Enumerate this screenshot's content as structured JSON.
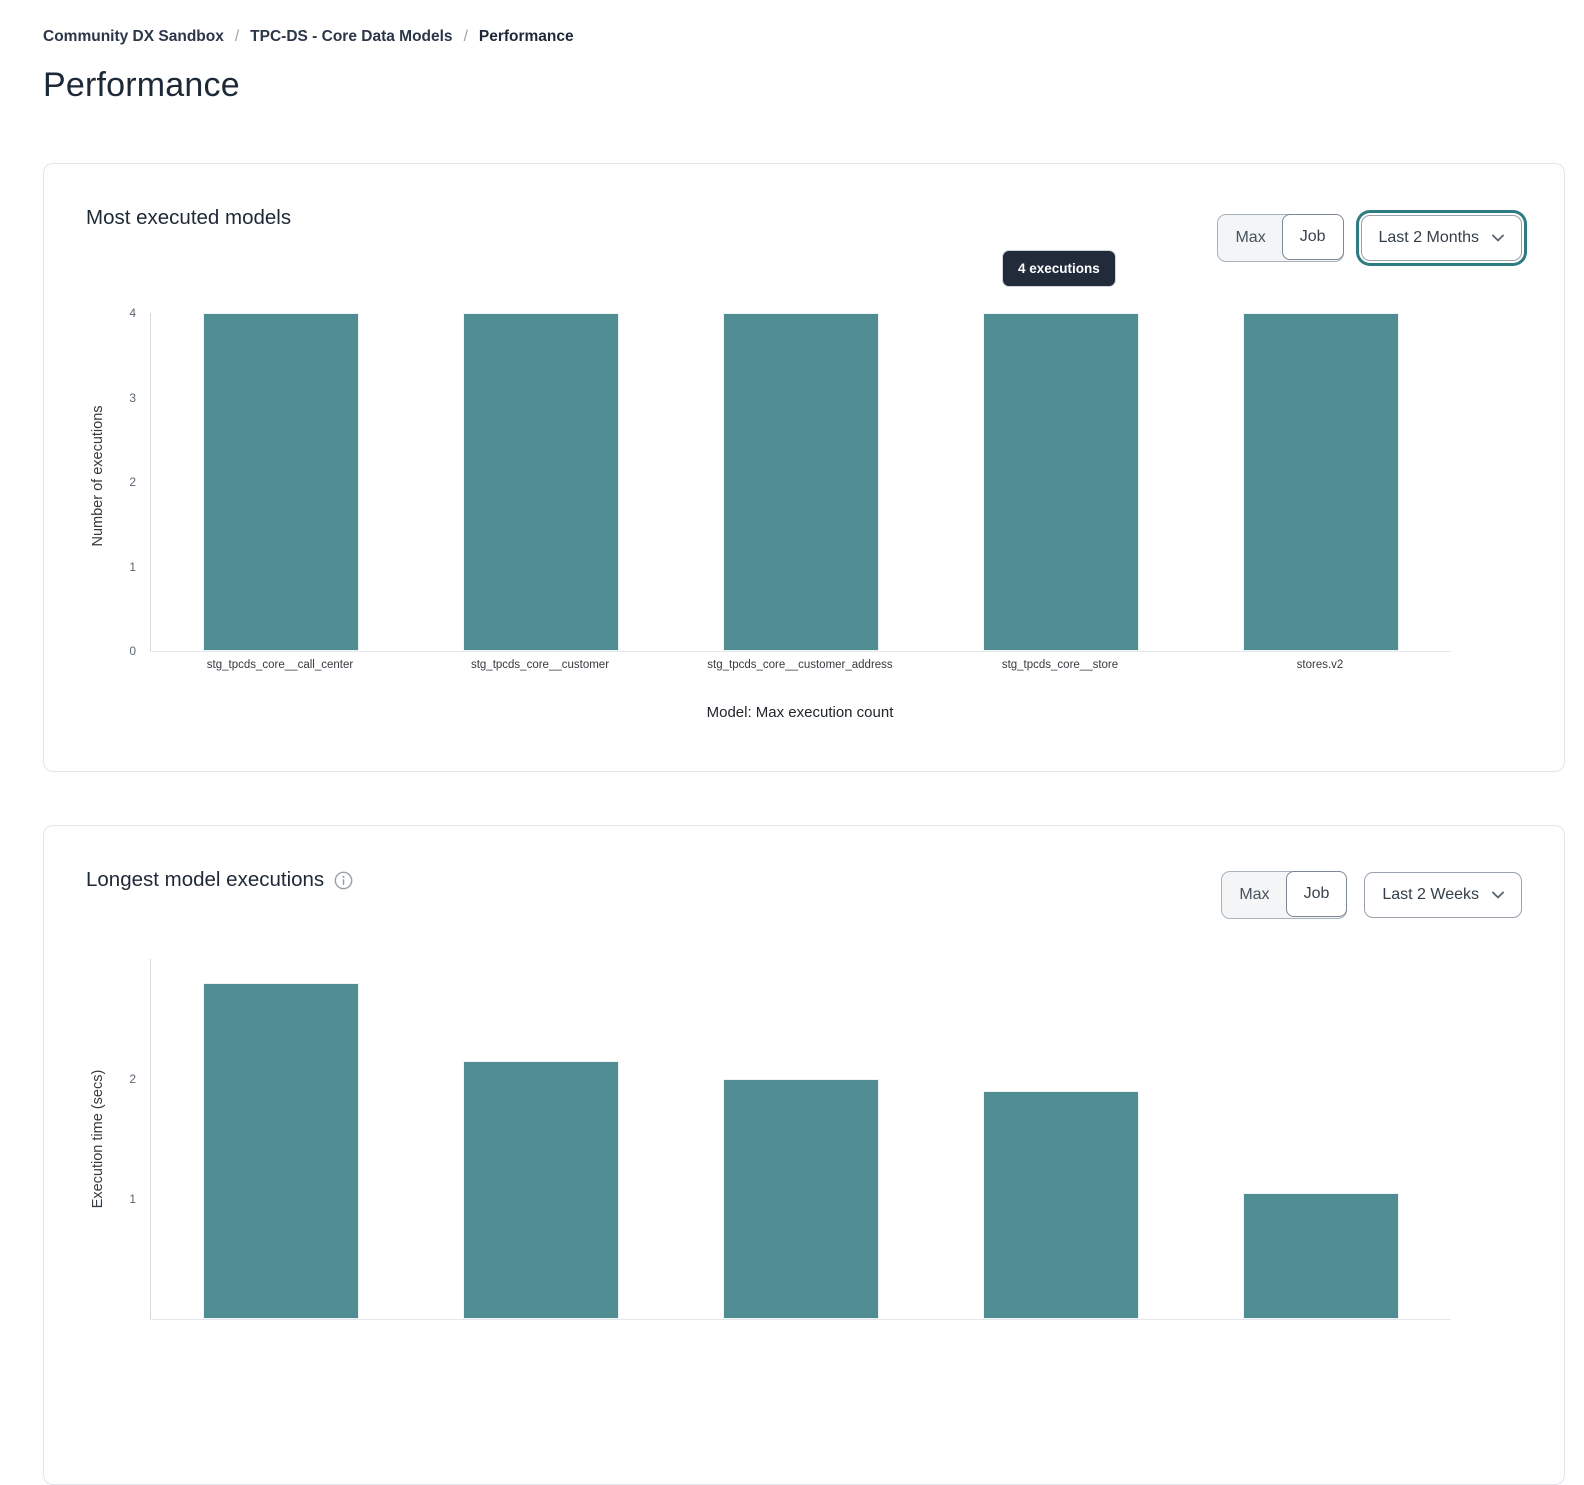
{
  "breadcrumb": {
    "separator": "/",
    "items": [
      {
        "label": "Community DX Sandbox",
        "current": false
      },
      {
        "label": "TPC-DS - Core Data Models",
        "current": false
      },
      {
        "label": "Performance",
        "current": true
      }
    ]
  },
  "page": {
    "title": "Performance"
  },
  "cards": [
    {
      "title": "Most executed models",
      "controls": {
        "segments": [
          "Max",
          "Job"
        ],
        "range_label": "Last 2 Months"
      },
      "tooltip": "4 executions"
    },
    {
      "title": "Longest model executions",
      "controls": {
        "segments": [
          "Max",
          "Job"
        ],
        "range_label": "Last 2 Weeks"
      }
    }
  ],
  "colors": {
    "bar": "#4f8d92",
    "accent_ring": "#2e7b81",
    "tooltip_bg": "#212b3a"
  },
  "chart_data": [
    {
      "type": "bar",
      "title": "Most executed models",
      "categories": [
        "stg_tpcds_core__call_center",
        "stg_tpcds_core__customer",
        "stg_tpcds_core__customer_address",
        "stg_tpcds_core__store",
        "stores.v2"
      ],
      "values": [
        4,
        4,
        4,
        4,
        4
      ],
      "xlabel": "Model: Max execution count",
      "ylabel": "Number of executions",
      "ylim": [
        0,
        4
      ],
      "yticks": [
        0,
        1,
        2,
        3,
        4
      ],
      "grid": false,
      "legend": false,
      "bar_color": "#4f8d92",
      "tooltip": {
        "text": "4 executions",
        "target_index": 3
      }
    },
    {
      "type": "bar",
      "title": "Longest model executions",
      "categories": [],
      "values": [
        2.8,
        2.15,
        2.0,
        1.9,
        1.05
      ],
      "xlabel": "",
      "ylabel": "Execution time (secs)",
      "ylim": [
        0,
        3
      ],
      "yticks": [
        1,
        2
      ],
      "grid": false,
      "legend": false,
      "bar_color": "#4f8d92"
    }
  ]
}
